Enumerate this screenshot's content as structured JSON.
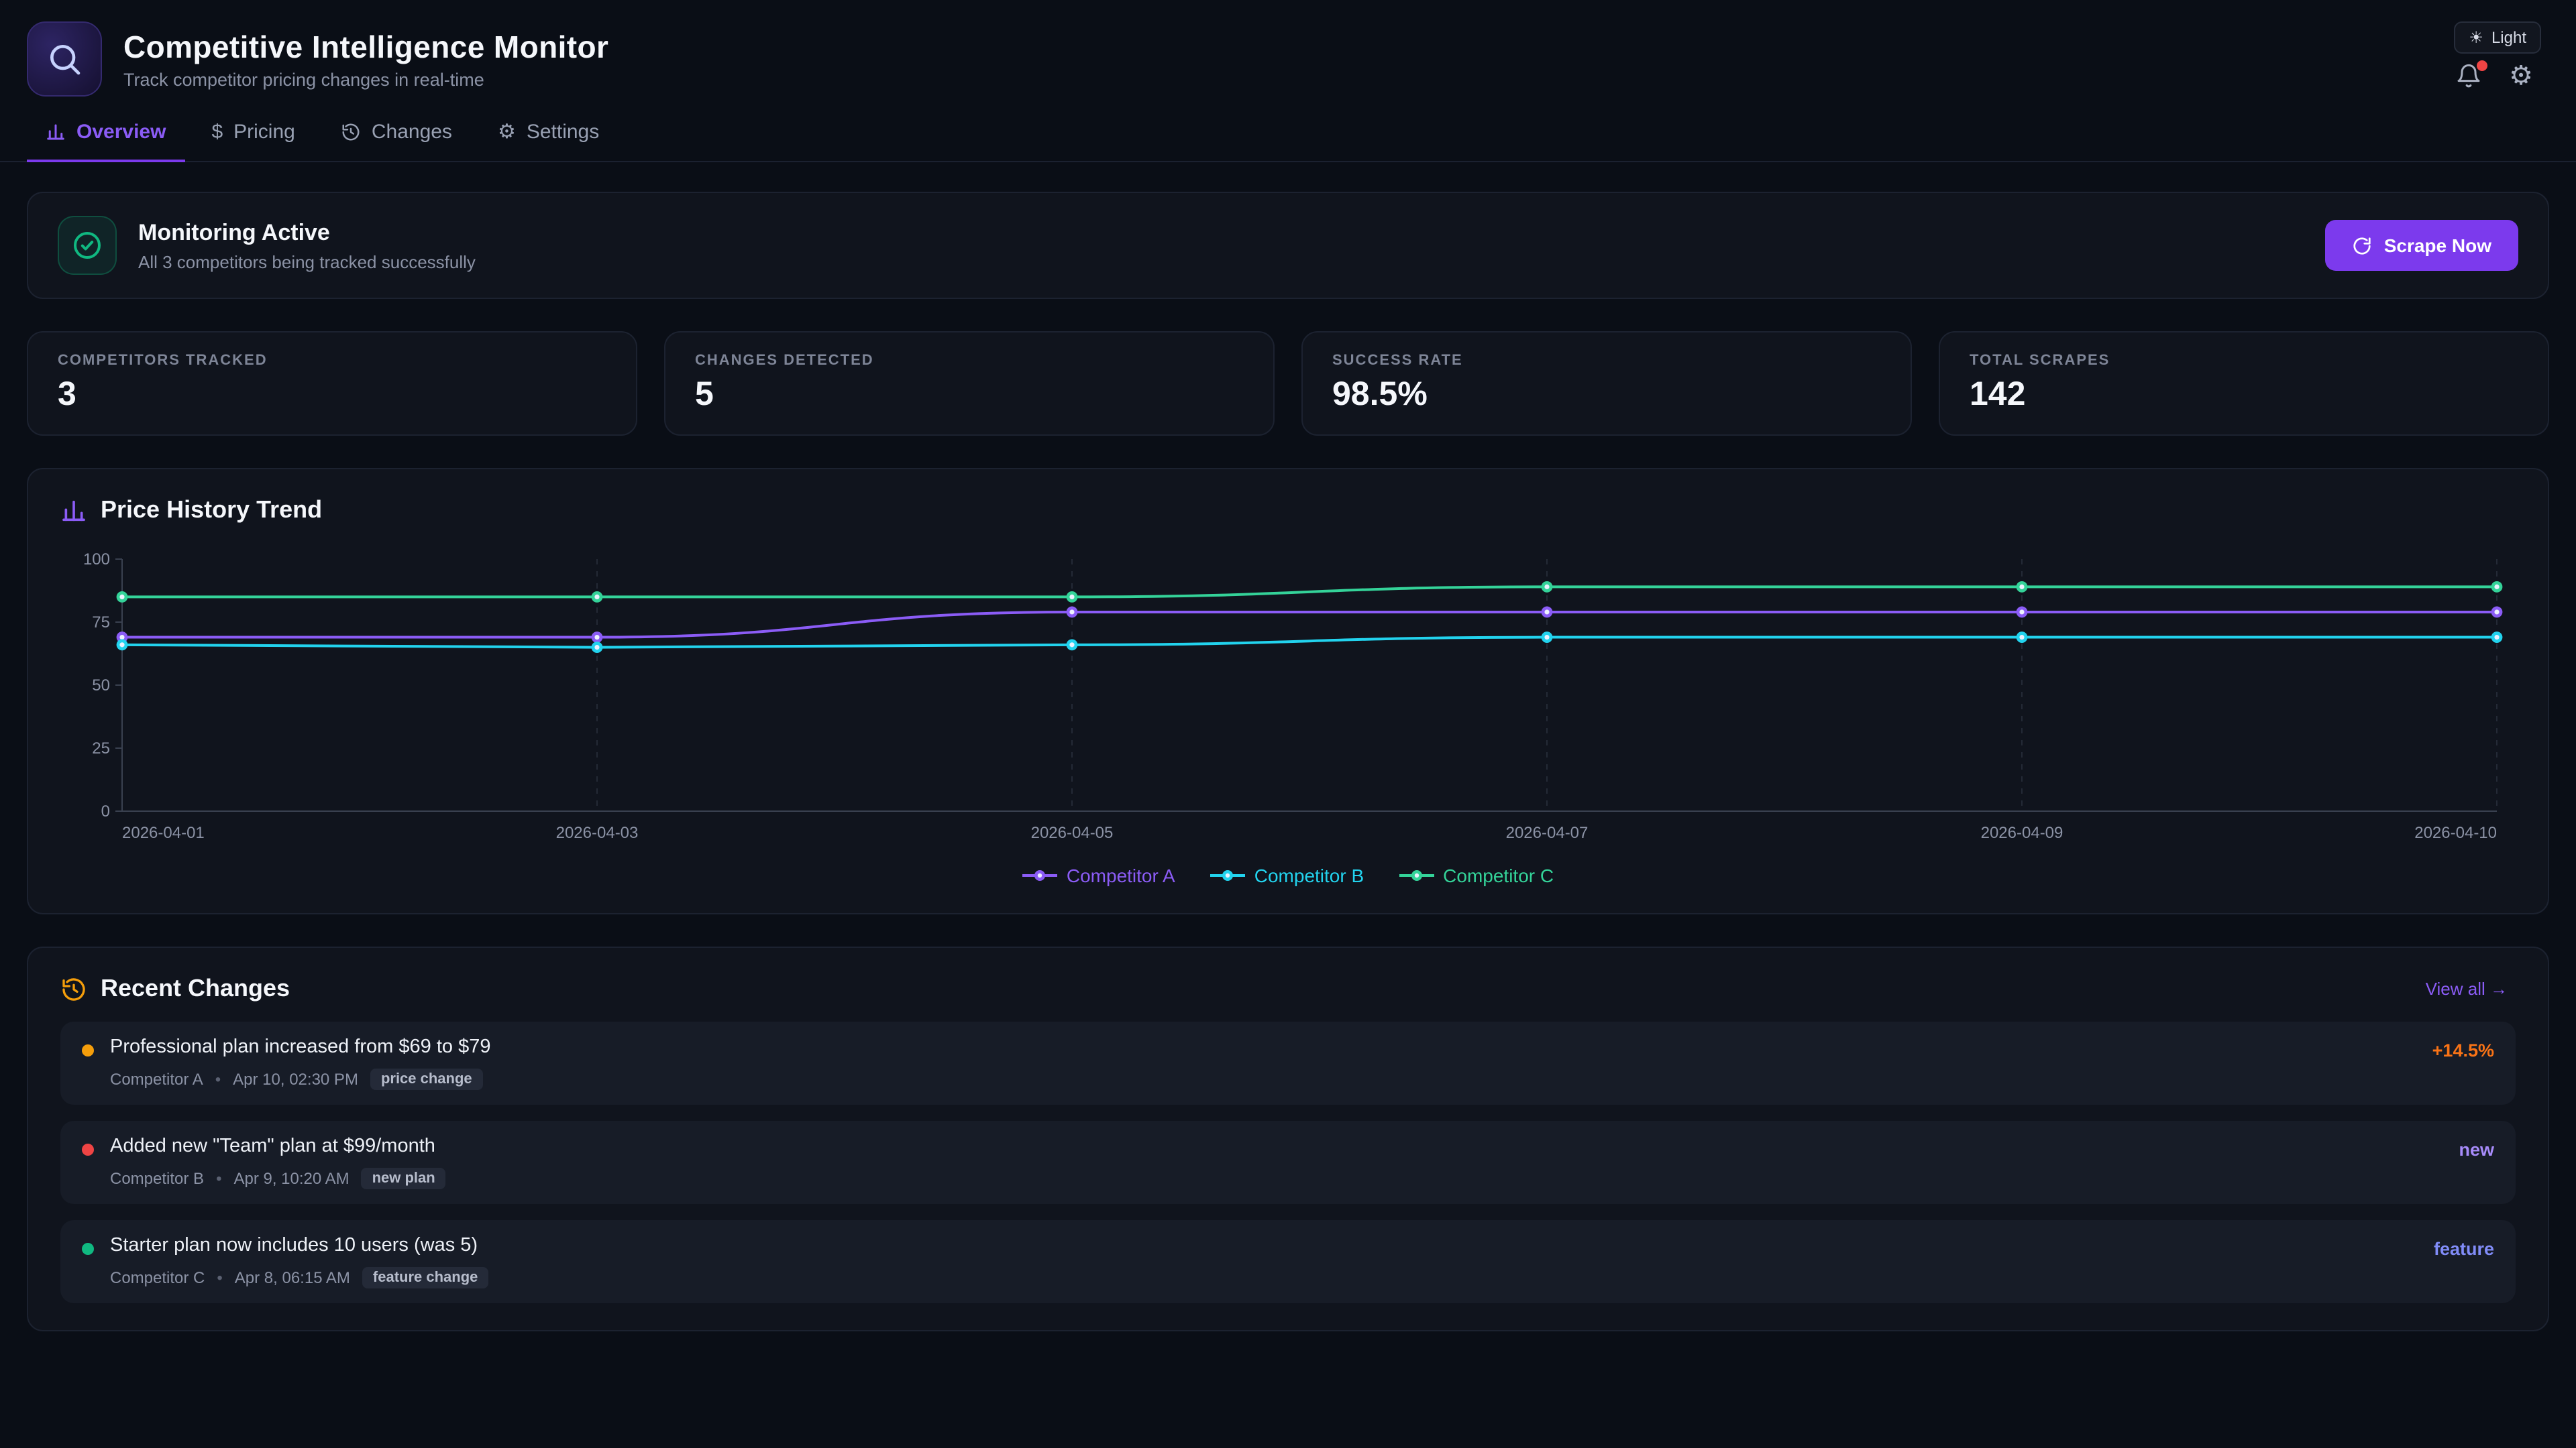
{
  "header": {
    "title": "Competitive Intelligence Monitor",
    "subtitle": "Track competitor pricing changes in real-time",
    "theme_toggle": "Light"
  },
  "tabs": [
    {
      "label": "Overview",
      "active": true
    },
    {
      "label": "Pricing",
      "active": false
    },
    {
      "label": "Changes",
      "active": false
    },
    {
      "label": "Settings",
      "active": false
    }
  ],
  "banner": {
    "title": "Monitoring Active",
    "subtitle": "All 3 competitors being tracked successfully",
    "button_label": "Scrape Now"
  },
  "stats": [
    {
      "label": "Competitors Tracked",
      "value": "3"
    },
    {
      "label": "Changes Detected",
      "value": "5"
    },
    {
      "label": "Success Rate",
      "value": "98.5%"
    },
    {
      "label": "Total Scrapes",
      "value": "142"
    }
  ],
  "chart": {
    "title": "Price History Trend"
  },
  "chart_data": {
    "type": "line",
    "x": [
      "2026-04-01",
      "2026-04-03",
      "2026-04-05",
      "2026-04-07",
      "2026-04-09",
      "2026-04-10"
    ],
    "series": [
      {
        "name": "Competitor A",
        "color": "#8b5cf6",
        "values": [
          69,
          69,
          79,
          79,
          79,
          79
        ]
      },
      {
        "name": "Competitor B",
        "color": "#22d3ee",
        "values": [
          66,
          65,
          66,
          69,
          69,
          69
        ]
      },
      {
        "name": "Competitor C",
        "color": "#34d399",
        "values": [
          85,
          85,
          85,
          89,
          89,
          89
        ]
      }
    ],
    "title": "Price History Trend",
    "xlabel": "",
    "ylabel": "",
    "ylim": [
      0,
      100
    ],
    "yticks": [
      0,
      25,
      50,
      75,
      100
    ],
    "grid": "vertical-dashed",
    "legend_position": "bottom"
  },
  "recent_changes": {
    "title": "Recent Changes",
    "view_all": "View all →",
    "items": [
      {
        "dot_color": "#f59e0b",
        "title": "Professional plan increased from $69 to $79",
        "competitor": "Competitor A",
        "time": "Apr 10, 02:30 PM",
        "badge": "price change",
        "delta": "+14.5%",
        "delta_color": "#f97316"
      },
      {
        "dot_color": "#ef4444",
        "title": "Added new \"Team\" plan at $99/month",
        "competitor": "Competitor B",
        "time": "Apr 9, 10:20 AM",
        "badge": "new plan",
        "delta": "new",
        "delta_color": "#a78bfa"
      },
      {
        "dot_color": "#10b981",
        "title": "Starter plan now includes 10 users (was 5)",
        "competitor": "Competitor C",
        "time": "Apr 8, 06:15 AM",
        "badge": "feature change",
        "delta": "feature",
        "delta_color": "#818cf8"
      }
    ]
  },
  "icons": {
    "sun": "☀",
    "gear": "⚙",
    "dollar": "$"
  }
}
